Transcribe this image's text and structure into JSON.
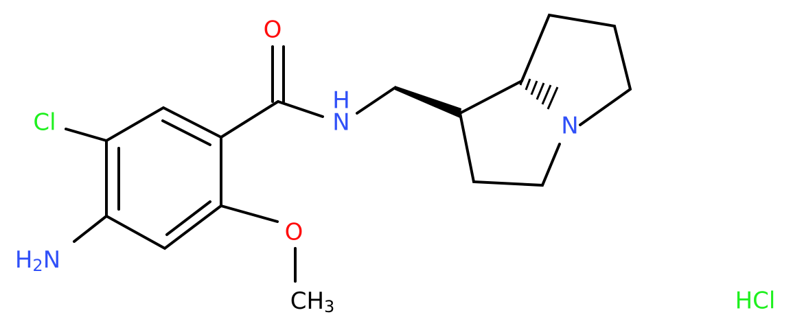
{
  "atoms": {
    "chlorine": "Cl",
    "amine": {
      "h": "H",
      "count": "2",
      "n": "N"
    },
    "carbonyl_oxygen": "O",
    "amide_nitrogen": {
      "n": "N",
      "h": "H"
    },
    "ring_nitrogen": "N",
    "methoxy_oxygen": "O",
    "methyl": {
      "c": "CH",
      "count": "3"
    }
  },
  "salt": "HCl"
}
